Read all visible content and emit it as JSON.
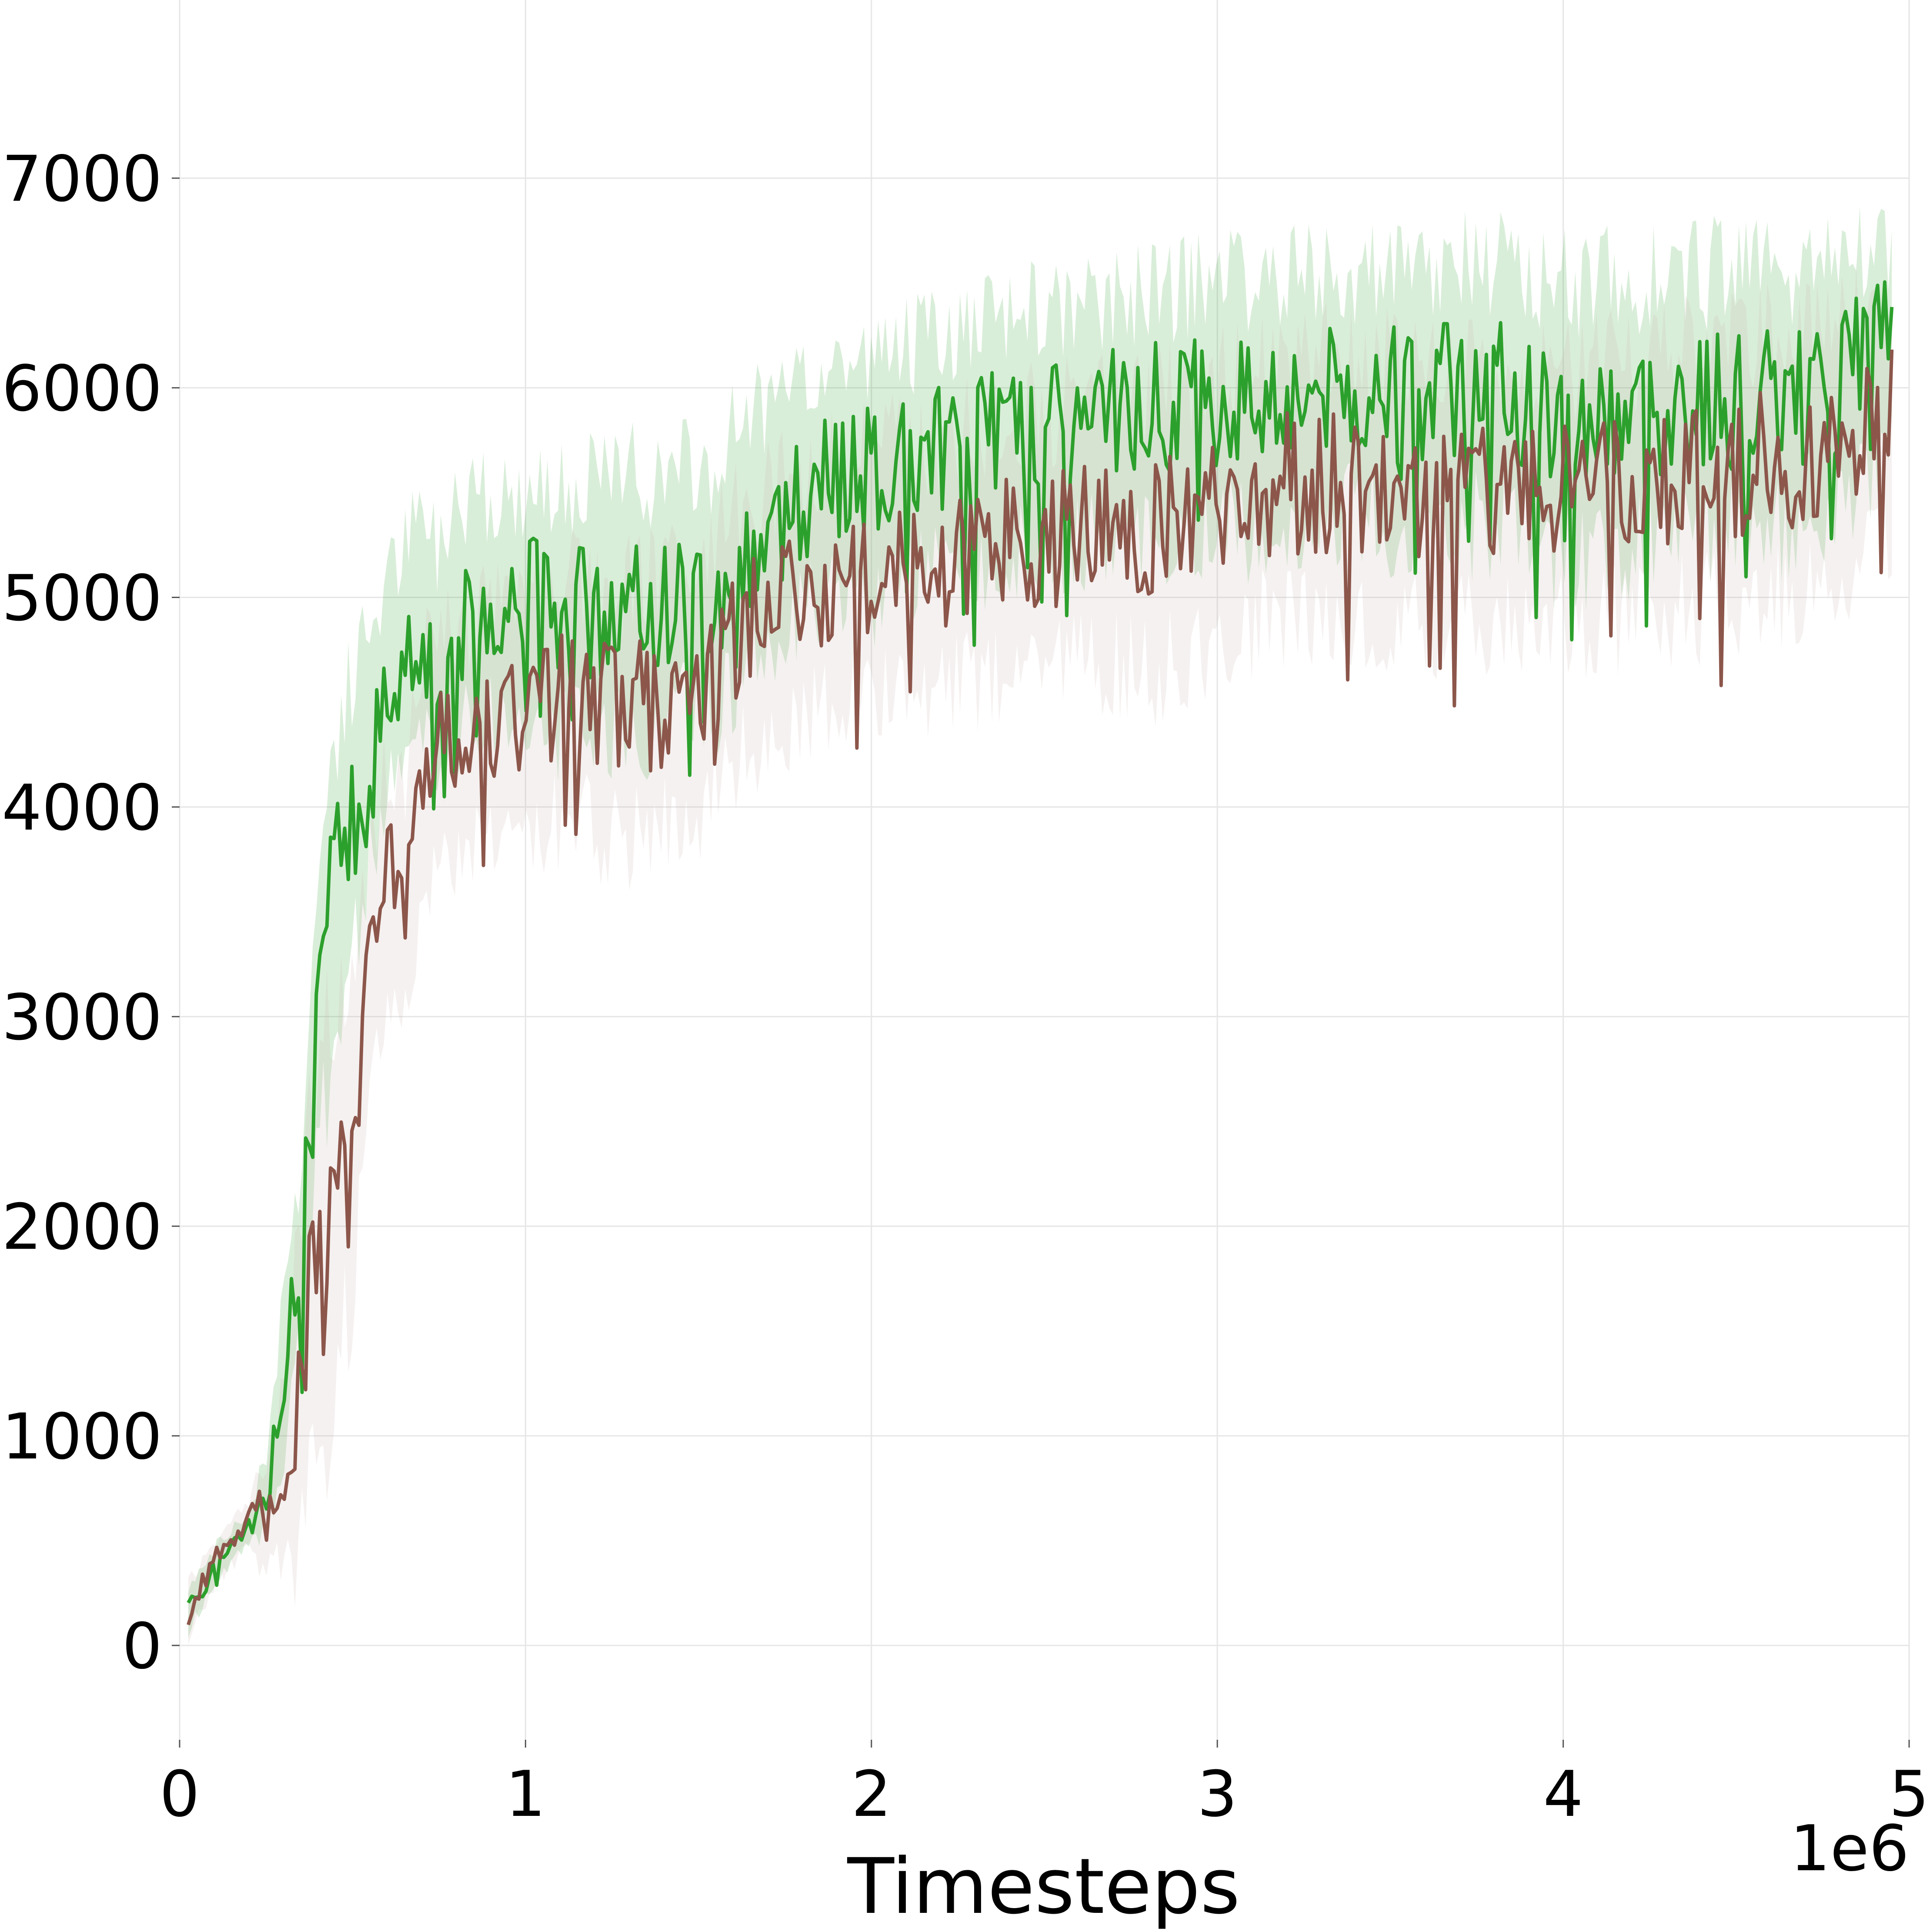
{
  "chart_data": {
    "type": "line",
    "title": "",
    "xlabel": "Timesteps",
    "ylabel": "",
    "x_offset_label": "1e6",
    "xlim": [
      0,
      5000000
    ],
    "ylim": [
      -450,
      7850
    ],
    "x_ticks": [
      0,
      1000000,
      2000000,
      3000000,
      4000000,
      5000000
    ],
    "x_tick_labels": [
      "0",
      "1",
      "2",
      "3",
      "4",
      "5"
    ],
    "y_ticks": [
      0,
      1000,
      2000,
      3000,
      4000,
      5000,
      6000,
      7000
    ],
    "y_tick_labels": [
      "0",
      "1000",
      "2000",
      "3000",
      "4000",
      "5000",
      "6000",
      "7000"
    ],
    "grid": true,
    "legend": "none",
    "series": [
      {
        "color": "#2ca02c",
        "band_color": "#2ca02c",
        "x": [
          25000,
          100000,
          200000,
          250000,
          300000,
          350000,
          400000,
          450000,
          500000,
          550000,
          600000,
          650000,
          700000,
          750000,
          800000,
          900000,
          1000000,
          1100000,
          1250000,
          1400000,
          1500000,
          1550000,
          1600000,
          1700000,
          1800000,
          1900000,
          2000000,
          2200000,
          2400000,
          2600000,
          2800000,
          3000000,
          3200000,
          3400000,
          3600000,
          3800000,
          4000000,
          4200000,
          4400000,
          4600000,
          4800000,
          4950000
        ],
        "y": [
          150,
          380,
          560,
          700,
          1300,
          1850,
          2950,
          3750,
          3850,
          4200,
          4550,
          4750,
          4850,
          4650,
          4850,
          5000,
          5000,
          4950,
          4900,
          5000,
          5050,
          4950,
          5200,
          5300,
          5450,
          5600,
          5600,
          5700,
          5800,
          5850,
          5900,
          5950,
          6000,
          6000,
          5950,
          6000,
          5850,
          5900,
          5950,
          5950,
          6000,
          6350
        ],
        "lower": [
          50,
          300,
          480,
          550,
          950,
          1500,
          2300,
          3000,
          3300,
          3700,
          4050,
          4250,
          4350,
          4150,
          4350,
          4450,
          4400,
          4350,
          4300,
          4400,
          4500,
          4450,
          4600,
          4750,
          4900,
          5000,
          5000,
          5100,
          5200,
          5250,
          5300,
          5300,
          5350,
          5400,
          5300,
          5350,
          5200,
          5250,
          5300,
          5300,
          5350,
          5700
        ],
        "upper": [
          300,
          460,
          640,
          900,
          1700,
          2300,
          3700,
          4400,
          4600,
          4900,
          5100,
          5250,
          5400,
          5250,
          5400,
          5500,
          5500,
          5500,
          5550,
          5600,
          5650,
          5600,
          5800,
          5900,
          6000,
          6150,
          6150,
          6250,
          6350,
          6400,
          6450,
          6500,
          6550,
          6550,
          6550,
          6600,
          6500,
          6500,
          6550,
          6550,
          6600,
          6650
        ]
      },
      {
        "color": "#8c564b",
        "band_color": "#c9b3ae",
        "x": [
          25000,
          100000,
          200000,
          250000,
          300000,
          350000,
          400000,
          450000,
          500000,
          550000,
          600000,
          650000,
          700000,
          750000,
          800000,
          900000,
          1000000,
          1100000,
          1250000,
          1400000,
          1500000,
          1550000,
          1600000,
          1700000,
          1800000,
          1900000,
          2000000,
          2200000,
          2400000,
          2600000,
          2800000,
          3000000,
          3200000,
          3400000,
          3600000,
          3800000,
          4000000,
          4200000,
          4400000,
          4600000,
          4800000,
          4950000
        ],
        "y": [
          150,
          420,
          600,
          650,
          750,
          1400,
          1850,
          1950,
          2300,
          3200,
          3700,
          3500,
          4150,
          4400,
          4300,
          4450,
          4450,
          4550,
          4450,
          4500,
          4600,
          4700,
          4800,
          4900,
          5050,
          5050,
          5150,
          5150,
          5250,
          5300,
          5300,
          5450,
          5550,
          5550,
          5500,
          5550,
          5500,
          5550,
          5600,
          5650,
          5700,
          5950
        ],
        "lower": [
          50,
          300,
          480,
          350,
          350,
          550,
          850,
          1200,
          1700,
          2600,
          3100,
          3000,
          3600,
          3800,
          3750,
          3850,
          3850,
          3950,
          3850,
          3900,
          4000,
          4100,
          4200,
          4300,
          4450,
          4450,
          4550,
          4550,
          4650,
          4650,
          4650,
          4800,
          4900,
          4900,
          4850,
          4900,
          4850,
          4900,
          4950,
          5000,
          5050,
          5300
        ],
        "upper": [
          300,
          500,
          700,
          900,
          1200,
          2200,
          2900,
          3000,
          3100,
          3800,
          4250,
          4100,
          4650,
          4900,
          4850,
          4950,
          5000,
          5100,
          5050,
          5100,
          5200,
          5300,
          5400,
          5500,
          5600,
          5650,
          5700,
          5750,
          5850,
          5900,
          5950,
          6050,
          6150,
          6150,
          6100,
          6150,
          6100,
          6150,
          6200,
          6250,
          6300,
          6450
        ]
      }
    ]
  }
}
